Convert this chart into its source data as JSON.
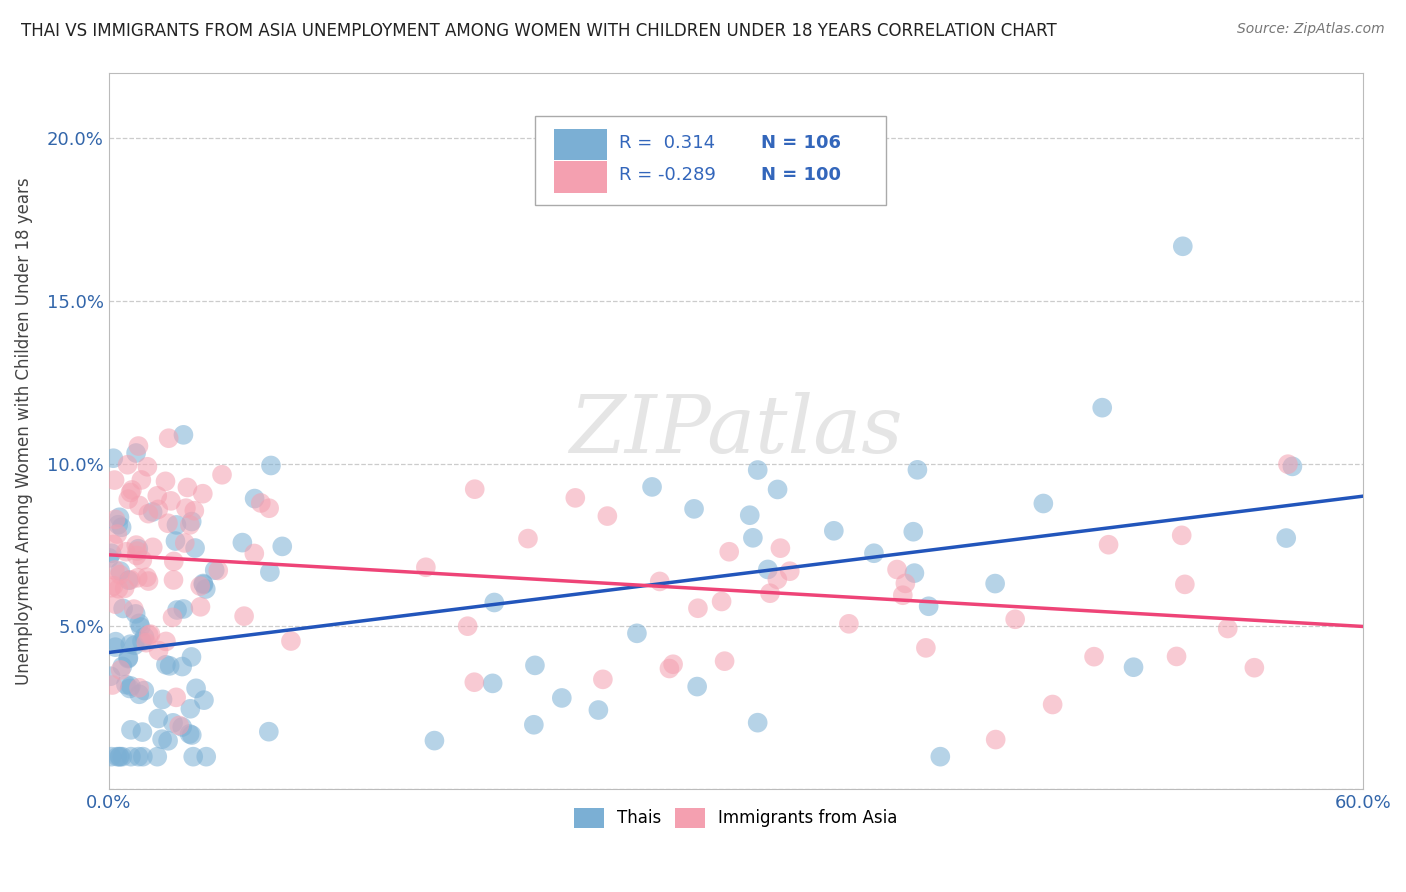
{
  "title": "THAI VS IMMIGRANTS FROM ASIA UNEMPLOYMENT AMONG WOMEN WITH CHILDREN UNDER 18 YEARS CORRELATION CHART",
  "source": "Source: ZipAtlas.com",
  "ylabel": "Unemployment Among Women with Children Under 18 years",
  "xlim": [
    0.0,
    0.6
  ],
  "ylim": [
    0.0,
    0.22
  ],
  "xtick_vals": [
    0.0,
    0.1,
    0.2,
    0.3,
    0.4,
    0.5,
    0.6
  ],
  "xticklabels": [
    "0.0%",
    "",
    "",
    "",
    "",
    "",
    "60.0%"
  ],
  "ytick_vals": [
    0.0,
    0.05,
    0.1,
    0.15,
    0.2
  ],
  "yticklabels": [
    "",
    "5.0%",
    "10.0%",
    "15.0%",
    "20.0%"
  ],
  "r_thai": 0.314,
  "n_thai": 106,
  "r_asia": -0.289,
  "n_asia": 100,
  "thai_color": "#7BAFD4",
  "asia_color": "#F4A0B0",
  "thai_line_color": "#2255BB",
  "asia_line_color": "#EE4477",
  "watermark": "ZIPatlas",
  "background_color": "#ffffff",
  "grid_color": "#cccccc",
  "title_color": "#333333",
  "thai_line_start_y": 0.042,
  "thai_line_end_y": 0.09,
  "asia_line_start_y": 0.072,
  "asia_line_end_y": 0.05
}
